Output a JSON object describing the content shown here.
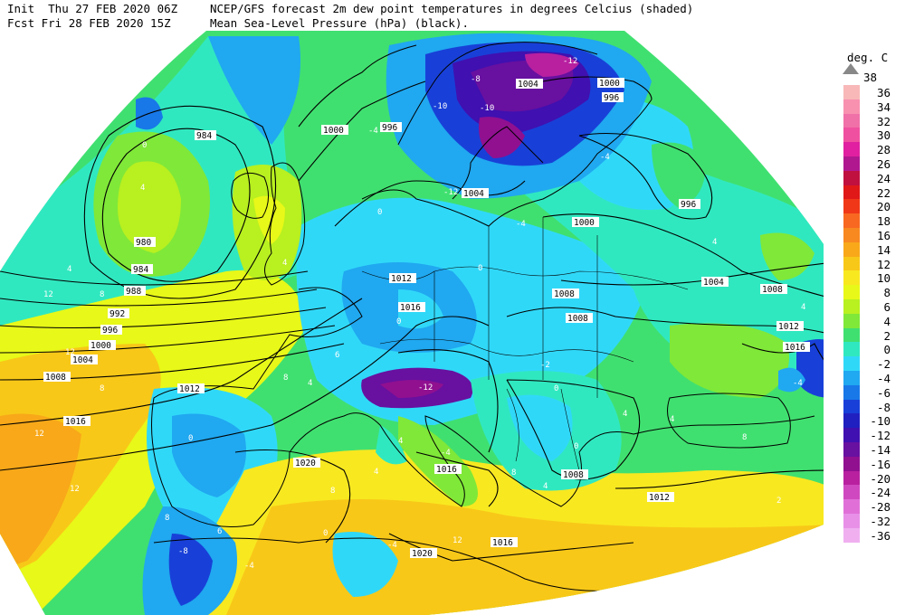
{
  "header": {
    "init_line": "Init  Thu 27 FEB 2020 06Z",
    "fcst_line": "Fcst Fri 28 FEB 2020 15Z",
    "title_line1": "NCEP/GFS forecast 2m dew point temperatures in degrees Celcius (shaded)",
    "title_line2": "Mean Sea-Level Pressure (hPa) (black)."
  },
  "legend": {
    "unit": "deg. C",
    "top_label": "38",
    "entries": [
      {
        "label": "36",
        "color": "#f8b8b8"
      },
      {
        "label": "34",
        "color": "#f890b0"
      },
      {
        "label": "32",
        "color": "#f070a8"
      },
      {
        "label": "30",
        "color": "#f050a0"
      },
      {
        "label": "28",
        "color": "#e020a0"
      },
      {
        "label": "26",
        "color": "#b01890"
      },
      {
        "label": "24",
        "color": "#c01040"
      },
      {
        "label": "22",
        "color": "#e01818"
      },
      {
        "label": "20",
        "color": "#f03818"
      },
      {
        "label": "18",
        "color": "#f86820"
      },
      {
        "label": "16",
        "color": "#f88820"
      },
      {
        "label": "14",
        "color": "#f8a818"
      },
      {
        "label": "12",
        "color": "#f8c818"
      },
      {
        "label": "10",
        "color": "#f8e820"
      },
      {
        "label": "8",
        "color": "#e8f818"
      },
      {
        "label": "6",
        "color": "#b8f020"
      },
      {
        "label": "4",
        "color": "#80e838"
      },
      {
        "label": "2",
        "color": "#40e070"
      },
      {
        "label": "0",
        "color": "#30e8c0"
      },
      {
        "label": "-2",
        "color": "#30d8f8"
      },
      {
        "label": "-4",
        "color": "#20a8f0"
      },
      {
        "label": "-6",
        "color": "#1878e8"
      },
      {
        "label": "-8",
        "color": "#1840d8"
      },
      {
        "label": "-10",
        "color": "#2020c0"
      },
      {
        "label": "-12",
        "color": "#4010b0"
      },
      {
        "label": "-14",
        "color": "#6810a0"
      },
      {
        "label": "-16",
        "color": "#901090"
      },
      {
        "label": "-20",
        "color": "#b820a0"
      },
      {
        "label": "-24",
        "color": "#d048c0"
      },
      {
        "label": "-28",
        "color": "#e070d8"
      },
      {
        "label": "-32",
        "color": "#e890e8"
      },
      {
        "label": "-36",
        "color": "#f0b0f0"
      }
    ]
  },
  "isobar_labels": [
    "984",
    "980",
    "984",
    "988",
    "992",
    "996",
    "1000",
    "1004",
    "1008",
    "1012",
    "1016",
    "1020",
    "996",
    "1000",
    "1004",
    "1004",
    "1000",
    "996",
    "1000",
    "996",
    "1004",
    "1008",
    "1008",
    "1008",
    "1012",
    "1016",
    "1012",
    "1016",
    "1008",
    "1016",
    "1012",
    "1020",
    "1016"
  ],
  "dewpoint_labels": [
    "0",
    "4",
    "4",
    "8",
    "12",
    "12",
    "8",
    "4",
    "0",
    "-4",
    "-8",
    "-10",
    "-12",
    "-12",
    "-10",
    "-4",
    "-4",
    "-12",
    "0",
    "4",
    "6",
    "4",
    "0",
    "-2",
    "8",
    "4",
    "4",
    "8",
    "2",
    "4",
    "6",
    "8",
    "12",
    "4",
    "-4",
    "-4",
    "0",
    "4",
    "0",
    "8",
    "12",
    "8",
    "4",
    "0",
    "-4",
    "12",
    "0",
    "-4",
    "-8"
  ]
}
